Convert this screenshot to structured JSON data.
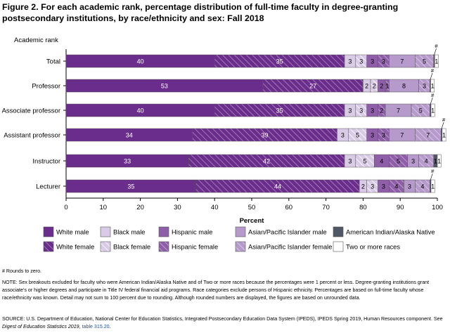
{
  "chart_data": {
    "type": "bar",
    "orientation": "horizontal",
    "stacked": true,
    "title": "Figure 2. For each academic rank, percentage distribution of full-time faculty in degree-granting postsecondary institutions, by race/ethnicity and sex: Fall 2018",
    "ylabel": "Academic rank",
    "xlabel": "Percent",
    "xlim": [
      0,
      100
    ],
    "xticks": [
      0,
      10,
      20,
      30,
      40,
      50,
      60,
      70,
      80,
      90,
      100
    ],
    "grid": false,
    "legend_position": "bottom",
    "categories": [
      "Total",
      "Professor",
      "Associate professor",
      "Assistant professor",
      "Instructor",
      "Lecturer"
    ],
    "series": [
      {
        "name": "White male",
        "color": "#6b2d8c",
        "pattern": "solid",
        "values": [
          40,
          53,
          40,
          34,
          33,
          35
        ],
        "labels": [
          "40",
          "53",
          "40",
          "34",
          "33",
          "35"
        ]
      },
      {
        "name": "White female",
        "color": "#6b2d8c",
        "pattern": "hatch",
        "values": [
          35,
          27,
          35,
          39,
          42,
          44
        ],
        "labels": [
          "35",
          "27",
          "35",
          "39",
          "42",
          "44"
        ]
      },
      {
        "name": "Black male",
        "color": "#d9cbe6",
        "pattern": "solid",
        "values": [
          3,
          2,
          3,
          3,
          3,
          2
        ],
        "labels": [
          "3",
          "2",
          "3",
          "3",
          "3",
          "2"
        ]
      },
      {
        "name": "Black female",
        "color": "#d9cbe6",
        "pattern": "hatch",
        "values": [
          3,
          2,
          3,
          5,
          5,
          3
        ],
        "labels": [
          "3",
          "2",
          "3",
          "5",
          "5",
          "3"
        ]
      },
      {
        "name": "Hispanic male",
        "color": "#8f5ea8",
        "pattern": "solid",
        "values": [
          3,
          2,
          3,
          3,
          4,
          3
        ],
        "labels": [
          "3",
          "2",
          "3",
          "3",
          "4",
          "3"
        ]
      },
      {
        "name": "Hispanic female",
        "color": "#8f5ea8",
        "pattern": "hatch",
        "values": [
          3,
          1,
          2,
          3,
          5,
          4
        ],
        "labels": [
          "3",
          "1",
          "2",
          "3",
          "5",
          "4"
        ]
      },
      {
        "name": "Asian/Pacific Islander male",
        "color": "#b59acb",
        "pattern": "solid",
        "values": [
          7,
          8,
          7,
          7,
          3,
          3
        ],
        "labels": [
          "7",
          "8",
          "7",
          "7",
          "3",
          "3"
        ]
      },
      {
        "name": "Asian/Pacific Islander female",
        "color": "#b59acb",
        "pattern": "hatch",
        "values": [
          5,
          3,
          5,
          7,
          4,
          4
        ],
        "labels": [
          "5",
          "3",
          "5",
          "7",
          "4",
          "4"
        ]
      },
      {
        "name": "American Indian/Alaska Native",
        "color": "#4f5866",
        "pattern": "solid",
        "values": [
          0.3,
          0.2,
          0.3,
          0.3,
          1,
          0.3
        ],
        "labels": [
          "#",
          "#",
          "#",
          "#",
          "1",
          "#"
        ]
      },
      {
        "name": "Two or more races",
        "color": "#ffffff",
        "pattern": "solid",
        "values": [
          1,
          1,
          1,
          1,
          1,
          1
        ],
        "labels": [
          "1",
          "1",
          "1",
          "1",
          "1",
          "1"
        ]
      }
    ]
  },
  "notes": {
    "rounds": "# Rounds to zero.",
    "note": "NOTE: Sex breakouts excluded for faculty who were American Indian/Alaska Native and of Two or more races because the percentages were 1 percent or less. Degree-granting institutions grant associate's or higher degrees and participate in Title IV federal financial aid programs. Race categories exclude persons of Hispanic ethnicity. Percentages are based on full-time faculty whose race/ethnicity was known. Detail may not sum to 100 percent due to rounding. Although rounded numbers are displayed, the figures are based on unrounded data.",
    "source_prefix": "SOURCE: U.S. Department of Education, National Center for Education Statistics, Integrated Postsecondary Education Data System (IPEDS), IPEDS Spring 2019, Human Resources component. See ",
    "source_digest": "Digest of Education Statistics 2019",
    "source_comma": ", ",
    "source_link": "table 315.20",
    "source_end": "."
  },
  "colors": {
    "axis": "#000000",
    "bar_label_dark": "#ffffff",
    "bar_label_light": "#000000",
    "link": "#1f4e9c"
  }
}
